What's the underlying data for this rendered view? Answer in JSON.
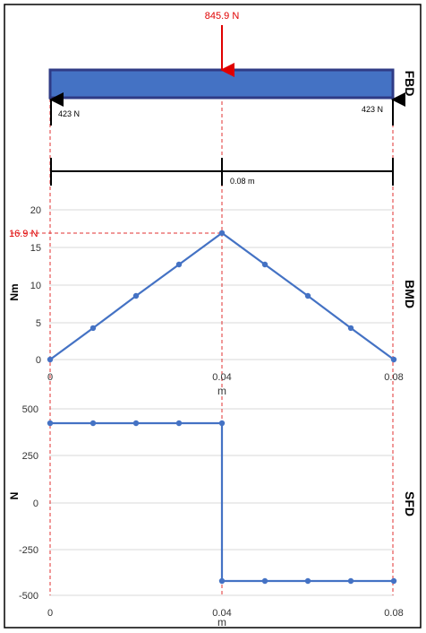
{
  "fbd": {
    "label": "FBD",
    "load_label": "845.9 N",
    "left_reaction_label": "423 N",
    "right_reaction_label": "423 N",
    "span_label": "0.08 m"
  },
  "bmd": {
    "label": "BMD",
    "peak_label": "16.9 N",
    "ylabel": "Nm",
    "xlabel": "m",
    "yticks": [
      "20",
      "15",
      "10",
      "5",
      "0"
    ],
    "xticks": [
      "0",
      "0.04",
      "0.08"
    ]
  },
  "sfd": {
    "label": "SFD",
    "ylabel": "N",
    "xlabel": "m",
    "yticks": [
      "500",
      "250",
      "0",
      "-250",
      "-500"
    ],
    "xticks": [
      "0",
      "0.04",
      "0.08"
    ]
  },
  "colors": {
    "beam_fill": "#4472c4",
    "beam_edge": "#2f3b86",
    "load": "#e00000",
    "series": "#4472c4",
    "guide": "#e03030",
    "grid": "#d9d9d9"
  },
  "chart_data": [
    {
      "type": "line",
      "name": "BMD",
      "x": [
        0,
        0.01,
        0.02,
        0.03,
        0.04,
        0.05,
        0.06,
        0.07,
        0.08
      ],
      "y": [
        0,
        4.2,
        8.5,
        12.7,
        16.9,
        12.7,
        8.5,
        4.2,
        0
      ],
      "xlim": [
        0,
        0.08
      ],
      "ylim": [
        0,
        20
      ],
      "xlabel": "m",
      "ylabel": "Nm",
      "grid": true
    },
    {
      "type": "line",
      "name": "SFD",
      "x": [
        0,
        0.01,
        0.02,
        0.03,
        0.04,
        0.04,
        0.05,
        0.06,
        0.07,
        0.08
      ],
      "y": [
        423,
        423,
        423,
        423,
        423,
        -423,
        -423,
        -423,
        -423,
        -423
      ],
      "marker_x": [
        0,
        0.01,
        0.02,
        0.03,
        0.04,
        0.04,
        0.05,
        0.06,
        0.07,
        0.08
      ],
      "marker_y": [
        423,
        423,
        423,
        423,
        423,
        -423,
        -423,
        -423,
        -423,
        -423
      ],
      "xlim": [
        0,
        0.08
      ],
      "ylim": [
        -500,
        500
      ],
      "xlabel": "m",
      "ylabel": "N",
      "grid": true
    }
  ]
}
